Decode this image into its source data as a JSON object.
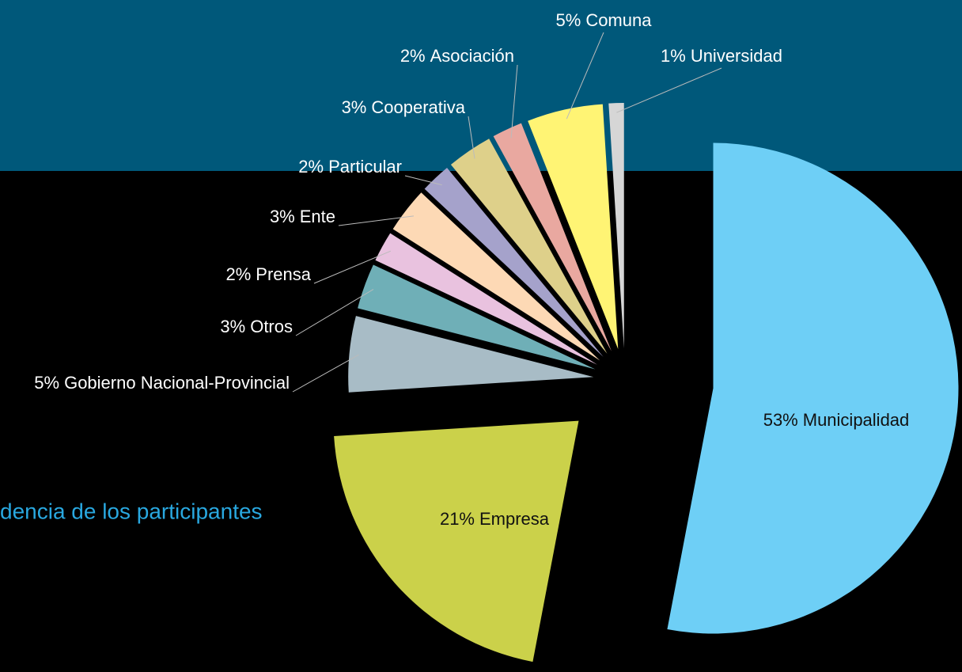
{
  "title": "dencia de los participantes",
  "chart_data": {
    "type": "pie",
    "categories": [
      "Municipalidad",
      "Empresa",
      "Gobierno Nacional-Provincial",
      "Otros",
      "Prensa",
      "Ente",
      "Particular",
      "Cooperativa",
      "Asociación",
      "Comuna",
      "Universidad"
    ],
    "values": [
      53,
      21,
      5,
      3,
      2,
      3,
      2,
      3,
      2,
      5,
      1
    ],
    "value_labels": [
      "53%",
      "21%",
      "5%",
      "3%",
      "2%",
      "3%",
      "2%",
      "3%",
      "2%",
      "5%",
      "1%"
    ],
    "colors": [
      "#6ecff6",
      "#cbd14a",
      "#a8bcc6",
      "#6fafb7",
      "#e9c2df",
      "#fdd9b5",
      "#a5a2cb",
      "#ded08a",
      "#e9a8a0",
      "#fff474",
      "#d6d6d6"
    ]
  }
}
